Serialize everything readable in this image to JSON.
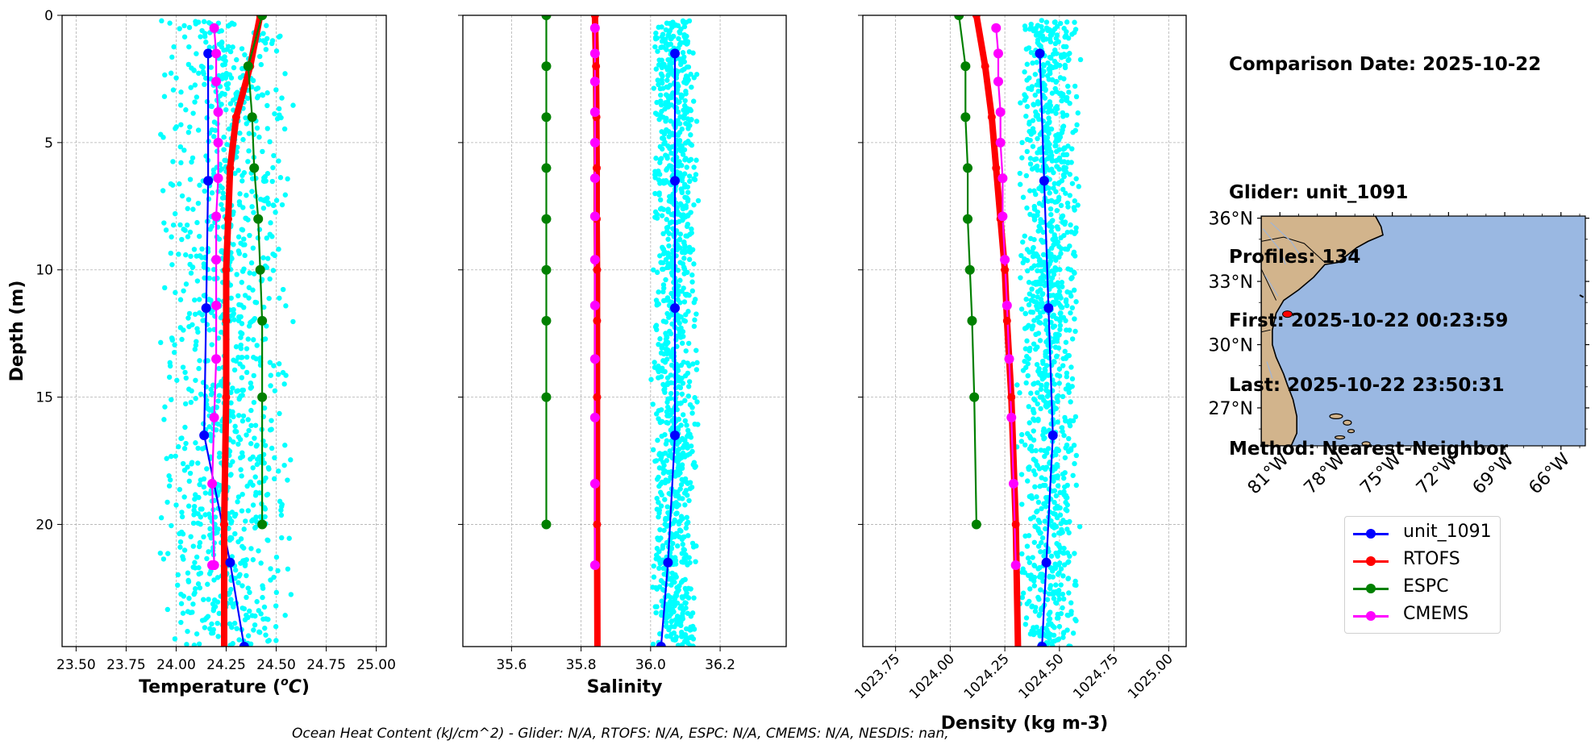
{
  "info": {
    "comparison_date": "Comparison Date: 2025-10-22",
    "glider": "Glider: unit_1091",
    "profiles": "Profiles: 134",
    "first": "First: 2025-10-22 00:23:59",
    "last": "Last: 2025-10-22 23:50:31",
    "method": "Method: Nearest-Neighbor"
  },
  "footnote": "Ocean Heat Content (kJ/cm^2) - Glider: N/A,  RTOFS: N/A,  ESPC: N/A,  CMEMS: N/A,  NESDIS: nan,",
  "colors": {
    "glider": "#0000ff",
    "rtofs": "#ff0000",
    "espc": "#008000",
    "cmems": "#ff00ff",
    "raw": "#00ffff",
    "land": "#d2b48c",
    "ocean": "#9ab8e2"
  },
  "legend": [
    {
      "name": "unit_1091",
      "color": "#0000ff"
    },
    {
      "name": "RTOFS",
      "color": "#ff0000"
    },
    {
      "name": "ESPC",
      "color": "#008000"
    },
    {
      "name": "CMEMS",
      "color": "#ff00ff"
    }
  ],
  "chart_data": [
    {
      "type": "line",
      "title": "",
      "xlabel": "Temperature (°C)",
      "ylabel": "Depth (m)",
      "xlim": [
        23.43,
        25.05
      ],
      "ylim": [
        24.8,
        0
      ],
      "xticks": [
        "23.50",
        "23.75",
        "24.00",
        "24.25",
        "24.50",
        "24.75",
        "25.00"
      ],
      "yticks": [
        "0",
        "5",
        "10",
        "15",
        "20"
      ],
      "raw_scatter": {
        "name": "glider raw",
        "x_range": [
          23.9,
          24.6
        ],
        "depth_range": [
          0.2,
          24.8
        ]
      },
      "series": [
        {
          "name": "unit_1091",
          "x": [
            24.16,
            24.16,
            24.15,
            24.14,
            24.27,
            24.34
          ],
          "depth": [
            1.5,
            6.5,
            11.5,
            16.5,
            21.5,
            24.8
          ]
        },
        {
          "name": "RTOFS",
          "x": [
            24.42,
            24.37,
            24.3,
            24.27,
            24.26,
            24.25,
            24.25,
            24.25,
            24.24,
            24.24
          ],
          "depth": [
            0,
            2,
            4,
            6,
            8,
            10,
            12,
            15,
            20,
            24.8
          ]
        },
        {
          "name": "ESPC",
          "x": [
            24.43,
            24.36,
            24.38,
            24.39,
            24.41,
            24.42,
            24.43,
            24.43,
            24.43
          ],
          "depth": [
            0,
            2,
            4,
            6,
            8,
            10,
            12,
            15,
            20
          ]
        },
        {
          "name": "CMEMS",
          "x": [
            24.19,
            24.2,
            24.2,
            24.21,
            24.21,
            24.21,
            24.2,
            24.2,
            24.2,
            24.2,
            24.19,
            24.18,
            24.19,
            24.19,
            24.18,
            24.18
          ],
          "depth": [
            0.5,
            1.5,
            2.6,
            3.8,
            5.0,
            6.4,
            7.9,
            9.6,
            11.4,
            13.5,
            15.8,
            18.4,
            21.6,
            21.6,
            21.6,
            21.6
          ]
        }
      ]
    },
    {
      "type": "line",
      "title": "",
      "xlabel": "Salinity",
      "ylabel": "",
      "xlim": [
        35.46,
        36.39
      ],
      "ylim": [
        24.8,
        0
      ],
      "xticks": [
        "35.6",
        "35.8",
        "36.0",
        "36.2"
      ],
      "yticks": [],
      "raw_scatter": {
        "name": "glider raw",
        "x_range": [
          36.0,
          36.14
        ],
        "depth_range": [
          0.2,
          24.8
        ]
      },
      "series": [
        {
          "name": "unit_1091",
          "x": [
            36.07,
            36.07,
            36.07,
            36.07,
            36.05,
            36.03
          ],
          "depth": [
            1.5,
            6.5,
            11.5,
            16.5,
            21.5,
            24.8
          ]
        },
        {
          "name": "RTOFS",
          "x": [
            35.84,
            35.843,
            35.844,
            35.845,
            35.845,
            35.846,
            35.846,
            35.846,
            35.846,
            35.847
          ],
          "depth": [
            0,
            2,
            4,
            6,
            8,
            10,
            12,
            15,
            20,
            24.8
          ]
        },
        {
          "name": "ESPC",
          "x": [
            35.7,
            35.7,
            35.7,
            35.7,
            35.7,
            35.7,
            35.7,
            35.7,
            35.7
          ],
          "depth": [
            0,
            2,
            4,
            6,
            8,
            10,
            12,
            15,
            20
          ]
        },
        {
          "name": "CMEMS",
          "x": [
            35.84,
            35.84,
            35.84,
            35.84,
            35.84,
            35.84,
            35.84,
            35.84,
            35.84,
            35.84,
            35.84,
            35.84,
            35.84
          ],
          "depth": [
            0.5,
            1.5,
            2.6,
            3.8,
            5.0,
            6.4,
            7.9,
            9.6,
            11.4,
            13.5,
            15.8,
            18.4,
            21.6
          ]
        }
      ]
    },
    {
      "type": "line",
      "title": "",
      "xlabel": "Density (kg m-3)",
      "ylabel": "",
      "xlim": [
        1023.6,
        1025.08
      ],
      "ylim": [
        24.8,
        0
      ],
      "xticks": [
        "1023.75",
        "1024.00",
        "1024.25",
        "1024.50",
        "1024.75",
        "1025.00"
      ],
      "yticks": [],
      "raw_scatter": {
        "name": "glider raw",
        "x_range": [
          1024.3,
          1024.6
        ],
        "depth_range": [
          0.2,
          24.8
        ]
      },
      "series": [
        {
          "name": "unit_1091",
          "x": [
            1024.41,
            1024.43,
            1024.45,
            1024.47,
            1024.44,
            1024.42
          ],
          "depth": [
            1.5,
            6.5,
            11.5,
            16.5,
            21.5,
            24.8
          ]
        },
        {
          "name": "RTOFS",
          "x": [
            1024.12,
            1024.16,
            1024.19,
            1024.21,
            1024.23,
            1024.25,
            1024.26,
            1024.28,
            1024.3,
            1024.31
          ],
          "depth": [
            0,
            2,
            4,
            6,
            8,
            10,
            12,
            15,
            20,
            24.8
          ]
        },
        {
          "name": "ESPC",
          "x": [
            1024.04,
            1024.07,
            1024.07,
            1024.08,
            1024.08,
            1024.09,
            1024.1,
            1024.11,
            1024.12
          ],
          "depth": [
            0,
            2,
            4,
            6,
            8,
            10,
            12,
            15,
            20
          ]
        },
        {
          "name": "CMEMS",
          "x": [
            1024.21,
            1024.22,
            1024.22,
            1024.23,
            1024.23,
            1024.24,
            1024.24,
            1024.25,
            1024.26,
            1024.27,
            1024.28,
            1024.29,
            1024.3
          ],
          "depth": [
            0.5,
            1.5,
            2.6,
            3.8,
            5.0,
            6.4,
            7.9,
            9.6,
            11.4,
            13.5,
            15.8,
            18.4,
            21.6
          ]
        }
      ]
    }
  ],
  "map": {
    "lat_ticks": [
      "36°N",
      "33°N",
      "30°N",
      "27°N"
    ],
    "lon_ticks": [
      "81°W",
      "78°W",
      "75°W",
      "72°W",
      "69°W",
      "66°W"
    ],
    "lat_values": [
      36,
      33,
      30,
      27
    ],
    "lon_values": [
      -81,
      -78,
      -75,
      -72,
      -69,
      -66
    ],
    "lat_range": [
      25.2,
      36.1
    ],
    "lon_range": [
      -82.0,
      -64.7
    ],
    "glider_position": {
      "lon": -80.6,
      "lat": 31.45
    }
  }
}
